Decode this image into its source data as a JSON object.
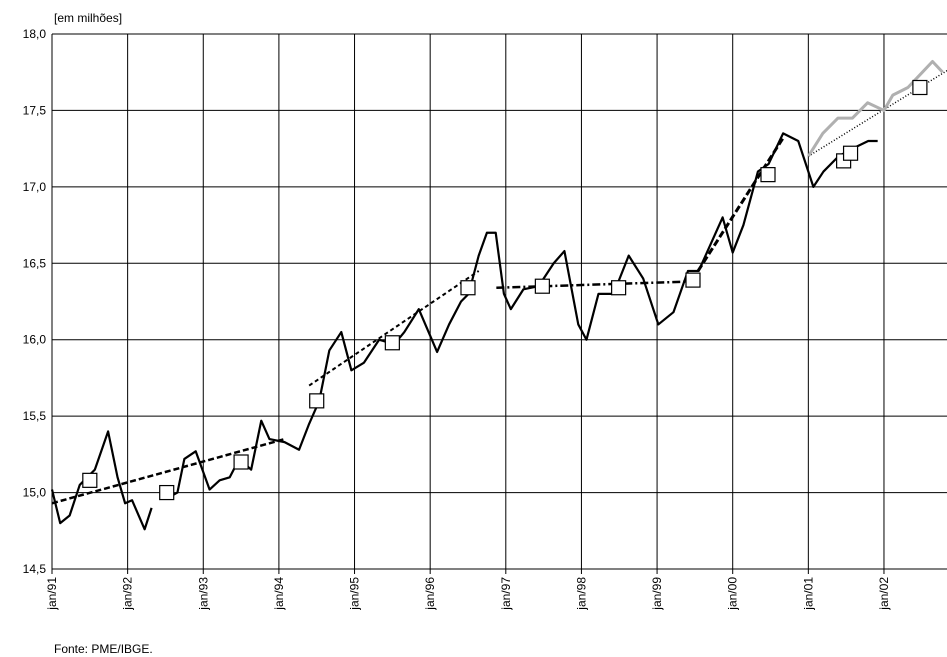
{
  "chart_data": {
    "type": "line",
    "subtitle": "[em milhões]",
    "source": "Fonte: PME/IBGE.",
    "grid": true,
    "xlim": [
      0,
      142
    ],
    "ylim": [
      14.5,
      18.0
    ],
    "xticks": [
      {
        "value": 0,
        "label": "jan/91"
      },
      {
        "value": 12,
        "label": "jan/92"
      },
      {
        "value": 24,
        "label": "jan/93"
      },
      {
        "value": 36,
        "label": "jan/94"
      },
      {
        "value": 48,
        "label": "jan/95"
      },
      {
        "value": 60,
        "label": "jan/96"
      },
      {
        "value": 72,
        "label": "jan/97"
      },
      {
        "value": 84,
        "label": "jan/98"
      },
      {
        "value": 96,
        "label": "jan/99"
      },
      {
        "value": 108,
        "label": "jan/00"
      },
      {
        "value": 120,
        "label": "jan/01"
      },
      {
        "value": 132,
        "label": "jan/02"
      }
    ],
    "yticks": [
      {
        "value": 14.5,
        "label": "14,5"
      },
      {
        "value": 15.0,
        "label": "15,0"
      },
      {
        "value": 15.5,
        "label": "15,5"
      },
      {
        "value": 16.0,
        "label": "16,0"
      },
      {
        "value": 16.5,
        "label": "16,5"
      },
      {
        "value": 17.0,
        "label": "17,0"
      },
      {
        "value": 17.5,
        "label": "17,5"
      },
      {
        "value": 18.0,
        "label": "18,0"
      }
    ],
    "series": [
      {
        "color": "#000000",
        "width": 2.2,
        "x": [
          0,
          1.3,
          2.8,
          4.4,
          6.8,
          8.9,
          10.4,
          11.6,
          12.7,
          14.7,
          15.8,
          17,
          19,
          19.9,
          21,
          22.8,
          25,
          26.6,
          28.2,
          29.7,
          31.6,
          33.2,
          34.5,
          36.9,
          39.2,
          40.8,
          42.4,
          44,
          45.9,
          47.5,
          49.5,
          51.9,
          54.3,
          55.9,
          58.2,
          61.1,
          63,
          64.9,
          66.1,
          67.7,
          69,
          70.4,
          71.7,
          72.8,
          74.8,
          77.2,
          79.6,
          81.3,
          83.5,
          84.8,
          86.7,
          89.1,
          91.5,
          93.8,
          96.2,
          98.6,
          100.9,
          102.6,
          106.4,
          108,
          109.7,
          112,
          113.7,
          116,
          118.4,
          120.8,
          122.4,
          124.8,
          127,
          129.5,
          131
        ],
        "values": [
          15.02,
          14.8,
          14.85,
          15.05,
          15.15,
          15.4,
          15.1,
          14.93,
          14.95,
          14.76,
          14.9,
          null,
          14.98,
          15.0,
          15.22,
          15.27,
          15.02,
          15.08,
          15.1,
          15.22,
          15.15,
          15.47,
          15.35,
          15.33,
          15.28,
          15.45,
          15.6,
          15.93,
          16.05,
          15.8,
          15.85,
          16.0,
          15.97,
          16.05,
          16.2,
          15.92,
          16.1,
          16.25,
          16.3,
          16.55,
          16.7,
          16.7,
          16.3,
          16.2,
          16.33,
          16.35,
          16.5,
          16.58,
          16.1,
          16.0,
          16.3,
          16.3,
          16.55,
          16.4,
          16.1,
          16.18,
          16.45,
          16.45,
          16.8,
          16.57,
          16.75,
          17.1,
          17.15,
          17.35,
          17.3,
          17.0,
          17.1,
          17.2,
          17.25,
          17.3,
          17.3
        ]
      },
      {
        "color": "#b0b0b0",
        "width": 3,
        "x": [
          120,
          122.3,
          124.7,
          127,
          129.4,
          132,
          133.4,
          135.8,
          138.1,
          139.7,
          141.3
        ],
        "values": [
          17.2,
          17.35,
          17.45,
          17.45,
          17.55,
          17.5,
          17.6,
          17.65,
          17.75,
          17.82,
          17.75
        ]
      }
    ],
    "trend_lines": [
      {
        "x": [
          0,
          36.9
        ],
        "values": [
          14.93,
          15.35
        ],
        "dash": "6 3",
        "width": 2.5
      },
      {
        "x": [
          40.8,
          67.7
        ],
        "values": [
          15.7,
          16.45
        ],
        "dash": "4 3",
        "width": 2
      },
      {
        "x": [
          70.5,
          100.9
        ],
        "values": [
          16.34,
          16.38
        ],
        "dash": "8 3 2 3",
        "width": 2.5
      },
      {
        "x": [
          102.5,
          116
        ],
        "values": [
          16.45,
          17.32
        ],
        "dash": "7 3",
        "width": 3
      },
      {
        "x": [
          120,
          142
        ],
        "values": [
          17.2,
          17.76
        ],
        "dash": "1 2",
        "width": 1.5
      }
    ],
    "markers": {
      "x": [
        6,
        18.2,
        30,
        42,
        54,
        66,
        77.8,
        89.9,
        101.7,
        113.6,
        125.6,
        126.7,
        137.7
      ],
      "values": [
        15.08,
        15.0,
        15.2,
        15.6,
        15.98,
        16.34,
        16.35,
        16.34,
        16.39,
        17.08,
        17.17,
        17.22,
        17.65
      ]
    }
  }
}
